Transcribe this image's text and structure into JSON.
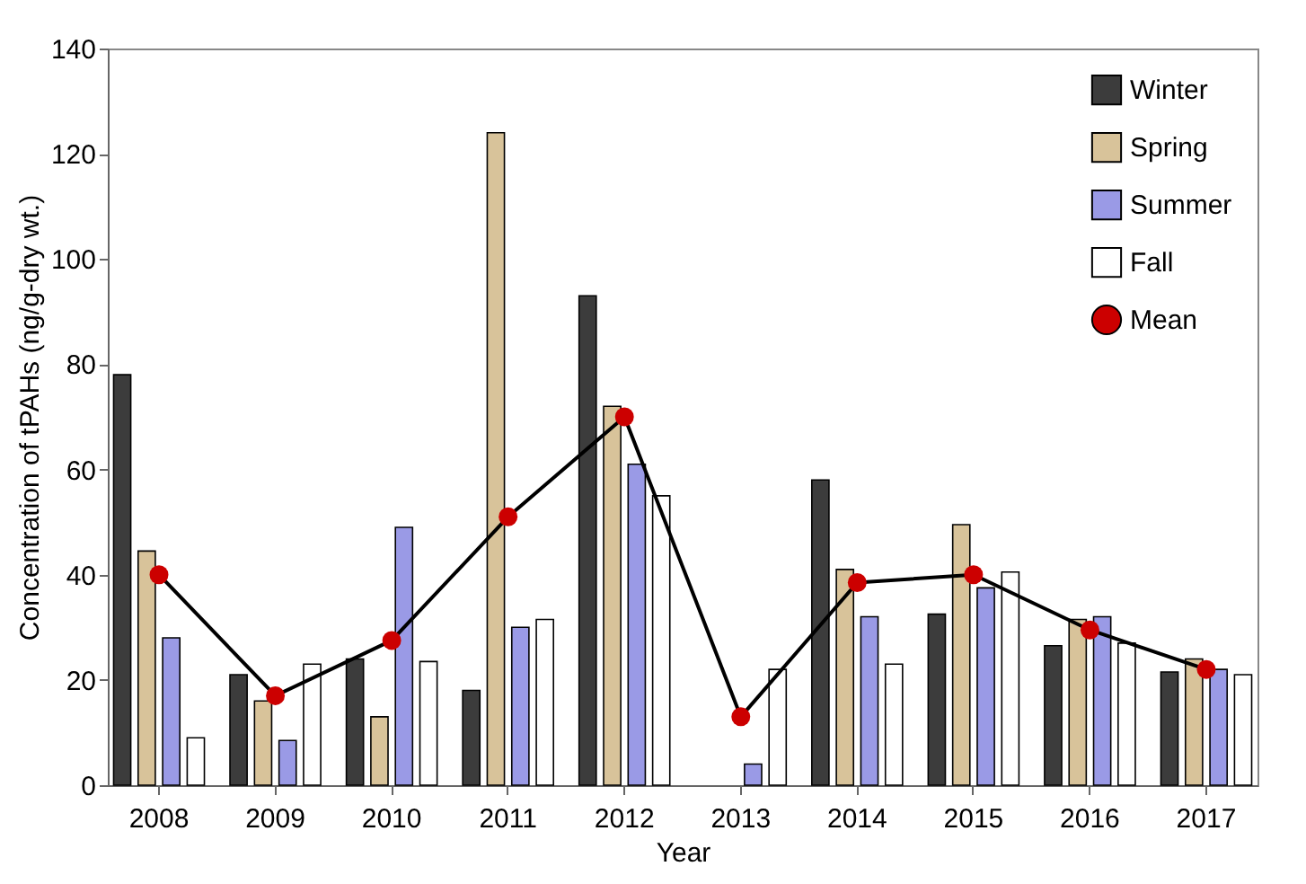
{
  "chart_data": {
    "type": "bar",
    "xlabel": "Year",
    "ylabel": "Concentration of tPAHs (ng/g-dry wt.)",
    "categories": [
      "2008",
      "2009",
      "2010",
      "2011",
      "2012",
      "2013",
      "2014",
      "2015",
      "2016",
      "2017"
    ],
    "ylim": [
      0,
      140
    ],
    "yticks": [
      0,
      20,
      40,
      60,
      80,
      100,
      120,
      140
    ],
    "grid": false,
    "legend": "top right",
    "series": [
      {
        "name": "Winter",
        "color": "#3c3c3c",
        "values": [
          78,
          21,
          24,
          18,
          93,
          null,
          58,
          32.5,
          26.5,
          21.5
        ]
      },
      {
        "name": "Spring",
        "color": "#d8c39a",
        "values": [
          44.5,
          16,
          13,
          124,
          72,
          null,
          41,
          49.5,
          31.5,
          24
        ]
      },
      {
        "name": "Summer",
        "color": "#9a9ae6",
        "values": [
          28,
          8.5,
          49,
          30,
          61,
          4,
          32,
          37.5,
          32,
          22
        ]
      },
      {
        "name": "Fall",
        "color": "#ffffff",
        "values": [
          9,
          23,
          23.5,
          31.5,
          55,
          22,
          23,
          40.5,
          27,
          21
        ]
      },
      {
        "name": "Mean",
        "type": "line",
        "marker": "circle",
        "line_style": "solid",
        "color": "#cc0000",
        "values": [
          40,
          17,
          27.5,
          51,
          70,
          13,
          38.5,
          40,
          29.5,
          22
        ]
      }
    ]
  }
}
